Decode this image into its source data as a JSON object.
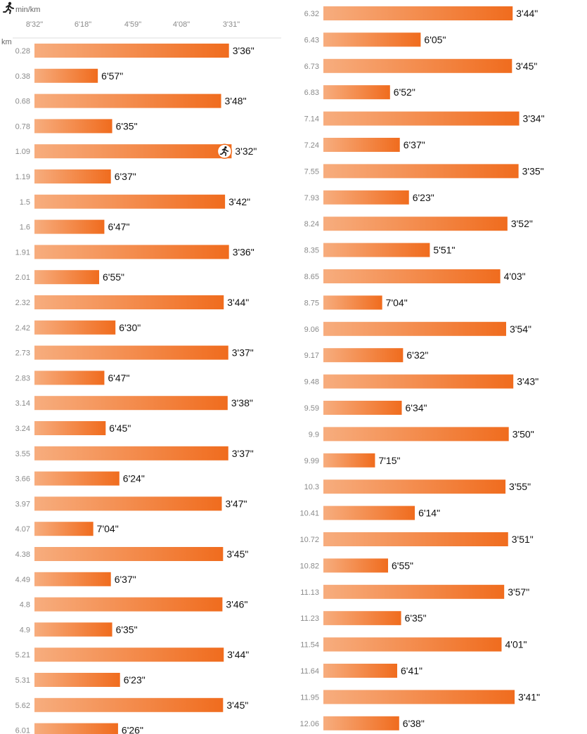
{
  "chart_data": {
    "type": "bar",
    "orientation": "horizontal",
    "pace_unit": "min/km",
    "distance_unit": "km",
    "x_ticks": [
      "8'32\"",
      "6'18\"",
      "4'59\"",
      "4'08\"",
      "3'31\""
    ],
    "x_axis_direction": "faster pace to the right",
    "colors": {
      "bar_start": "#f7ad7e",
      "bar_end": "#f06c1e",
      "text": "#111111",
      "muted": "#8a8a8a"
    },
    "marker": {
      "icon": "runner-icon",
      "km": "1.09"
    },
    "laps": [
      {
        "km": "0.28",
        "pace": "3'36\"",
        "seconds": 216
      },
      {
        "km": "0.38",
        "pace": "6'57\"",
        "seconds": 417
      },
      {
        "km": "0.68",
        "pace": "3'48\"",
        "seconds": 228
      },
      {
        "km": "0.78",
        "pace": "6'35\"",
        "seconds": 395
      },
      {
        "km": "1.09",
        "pace": "3'32\"",
        "seconds": 212
      },
      {
        "km": "1.19",
        "pace": "6'37\"",
        "seconds": 397
      },
      {
        "km": "1.5",
        "pace": "3'42\"",
        "seconds": 222
      },
      {
        "km": "1.6",
        "pace": "6'47\"",
        "seconds": 407
      },
      {
        "km": "1.91",
        "pace": "3'36\"",
        "seconds": 216
      },
      {
        "km": "2.01",
        "pace": "6'55\"",
        "seconds": 415
      },
      {
        "km": "2.32",
        "pace": "3'44\"",
        "seconds": 224
      },
      {
        "km": "2.42",
        "pace": "6'30\"",
        "seconds": 390
      },
      {
        "km": "2.73",
        "pace": "3'37\"",
        "seconds": 217
      },
      {
        "km": "2.83",
        "pace": "6'47\"",
        "seconds": 407
      },
      {
        "km": "3.14",
        "pace": "3'38\"",
        "seconds": 218
      },
      {
        "km": "3.24",
        "pace": "6'45\"",
        "seconds": 405
      },
      {
        "km": "3.55",
        "pace": "3'37\"",
        "seconds": 217
      },
      {
        "km": "3.66",
        "pace": "6'24\"",
        "seconds": 384
      },
      {
        "km": "3.97",
        "pace": "3'47\"",
        "seconds": 227
      },
      {
        "km": "4.07",
        "pace": "7'04\"",
        "seconds": 424
      },
      {
        "km": "4.38",
        "pace": "3'45\"",
        "seconds": 225
      },
      {
        "km": "4.49",
        "pace": "6'37\"",
        "seconds": 397
      },
      {
        "km": "4.8",
        "pace": "3'46\"",
        "seconds": 226
      },
      {
        "km": "4.9",
        "pace": "6'35\"",
        "seconds": 395
      },
      {
        "km": "5.21",
        "pace": "3'44\"",
        "seconds": 224
      },
      {
        "km": "5.31",
        "pace": "6'23\"",
        "seconds": 383
      },
      {
        "km": "5.62",
        "pace": "3'45\"",
        "seconds": 225
      },
      {
        "km": "6.01",
        "pace": "6'26\"",
        "seconds": 386
      },
      {
        "km": "6.32",
        "pace": "3'44\"",
        "seconds": 224
      },
      {
        "km": "6.43",
        "pace": "6'05\"",
        "seconds": 365
      },
      {
        "km": "6.73",
        "pace": "3'45\"",
        "seconds": 225
      },
      {
        "km": "6.83",
        "pace": "6'52\"",
        "seconds": 412
      },
      {
        "km": "7.14",
        "pace": "3'34\"",
        "seconds": 214
      },
      {
        "km": "7.24",
        "pace": "6'37\"",
        "seconds": 397
      },
      {
        "km": "7.55",
        "pace": "3'35\"",
        "seconds": 215
      },
      {
        "km": "7.93",
        "pace": "6'23\"",
        "seconds": 383
      },
      {
        "km": "8.24",
        "pace": "3'52\"",
        "seconds": 232
      },
      {
        "km": "8.35",
        "pace": "5'51\"",
        "seconds": 351
      },
      {
        "km": "8.65",
        "pace": "4'03\"",
        "seconds": 243
      },
      {
        "km": "8.75",
        "pace": "7'04\"",
        "seconds": 424
      },
      {
        "km": "9.06",
        "pace": "3'54\"",
        "seconds": 234
      },
      {
        "km": "9.17",
        "pace": "6'32\"",
        "seconds": 392
      },
      {
        "km": "9.48",
        "pace": "3'43\"",
        "seconds": 223
      },
      {
        "km": "9.59",
        "pace": "6'34\"",
        "seconds": 394
      },
      {
        "km": "9.9",
        "pace": "3'50\"",
        "seconds": 230
      },
      {
        "km": "9.99",
        "pace": "7'15\"",
        "seconds": 435
      },
      {
        "km": "10.3",
        "pace": "3'55\"",
        "seconds": 235
      },
      {
        "km": "10.41",
        "pace": "6'14\"",
        "seconds": 374
      },
      {
        "km": "10.72",
        "pace": "3'51\"",
        "seconds": 231
      },
      {
        "km": "10.82",
        "pace": "6'55\"",
        "seconds": 415
      },
      {
        "km": "11.13",
        "pace": "3'57\"",
        "seconds": 237
      },
      {
        "km": "11.23",
        "pace": "6'35\"",
        "seconds": 395
      },
      {
        "km": "11.54",
        "pace": "4'01\"",
        "seconds": 241
      },
      {
        "km": "11.64",
        "pace": "6'41\"",
        "seconds": 401
      },
      {
        "km": "11.95",
        "pace": "3'41\"",
        "seconds": 221
      },
      {
        "km": "12.06",
        "pace": "6'38\"",
        "seconds": 398
      }
    ]
  }
}
